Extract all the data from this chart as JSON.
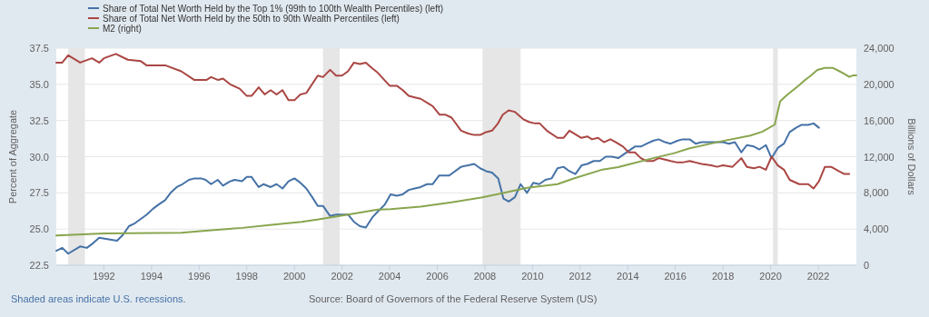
{
  "chart_data": {
    "type": "line",
    "ylabel": "Percent of Aggregate",
    "y2label": "Billions of Dollars",
    "xlim": [
      1990,
      2023.6
    ],
    "xticks": [
      1992,
      1994,
      1996,
      1998,
      2000,
      2002,
      2004,
      2006,
      2008,
      2010,
      2012,
      2014,
      2016,
      2018,
      2020,
      2022
    ],
    "ylim": [
      22.5,
      37.5
    ],
    "yticks": [
      22.5,
      {
        "value": 25,
        "label": "25.0"
      },
      27.5,
      {
        "value": 30,
        "label": "30.0"
      },
      32.5,
      {
        "value": 35,
        "label": "35.0"
      },
      37.5
    ],
    "y2lim": [
      0,
      24000
    ],
    "y2ticks": [
      {
        "value": 0,
        "label": "0"
      },
      {
        "value": 4000,
        "label": "4,000"
      },
      {
        "value": 8000,
        "label": "8,000"
      },
      {
        "value": 12000,
        "label": "12,000"
      },
      {
        "value": 16000,
        "label": "16,000"
      },
      {
        "value": 20000,
        "label": "20,000"
      },
      {
        "value": 24000,
        "label": "24,000"
      }
    ],
    "grid": "y",
    "legend": "top left",
    "marker": "none",
    "line_style": "solid",
    "bands": [
      {
        "axis": "x",
        "from": 1990.5,
        "to": 1991.2,
        "color": "#e6e6e6"
      },
      {
        "axis": "x",
        "from": 2001.2,
        "to": 2001.9,
        "color": "#e6e6e6"
      },
      {
        "axis": "x",
        "from": 2007.9,
        "to": 2009.5,
        "color": "#e6e6e6"
      },
      {
        "axis": "x",
        "from": 2020.1,
        "to": 2020.3,
        "color": "#e6e6e6"
      }
    ],
    "annotations": [
      "Shaded areas indicate U.S. recessions.",
      "Source: Board of Governors of the Federal Reserve System (US)"
    ],
    "series": [
      {
        "name": "Share of Total Net Worth Held by the Top 1% (99th to 100th Wealth Percentiles) (left)",
        "color": "#4572a7",
        "x": [
          1990,
          1990.25,
          1990.5,
          1991,
          1991.28,
          1991.53,
          1991.8,
          1992.55,
          1992.8,
          1993.05,
          1993.3,
          1993.55,
          1993.8,
          1994.06,
          1994.3,
          1994.57,
          1994.8,
          1995.06,
          1995.3,
          1995.57,
          1995.8,
          1996.08,
          1996.27,
          1996.5,
          1996.78,
          1997,
          1997.3,
          1997.5,
          1997.8,
          1998,
          1998.2,
          1998.5,
          1998.7,
          1999,
          1999.25,
          1999.5,
          1999.75,
          2000,
          2000.25,
          2000.5,
          2000.75,
          2000.98,
          2001.2,
          2001.5,
          2001.75,
          2002.25,
          2002.5,
          2002.75,
          2003,
          2003.27,
          2003.5,
          2003.8,
          2004.04,
          2004.3,
          2004.55,
          2004.8,
          2005.05,
          2005.3,
          2005.57,
          2005.8,
          2006.08,
          2006.5,
          2007,
          2007.3,
          2007.55,
          2007.8,
          2008.05,
          2008.3,
          2008.56,
          2008.78,
          2009,
          2009.26,
          2009.5,
          2009.77,
          2010.03,
          2010.28,
          2010.54,
          2010.8,
          2011.05,
          2011.3,
          2011.55,
          2011.8,
          2012.06,
          2012.3,
          2012.57,
          2012.83,
          2013.08,
          2013.34,
          2013.6,
          2014.04,
          2014.3,
          2014.55,
          2014.8,
          2015.06,
          2015.3,
          2015.57,
          2015.8,
          2016.08,
          2016.3,
          2016.6,
          2016.85,
          2017.1,
          2017.5,
          2018,
          2018.25,
          2018.5,
          2018.77,
          2019,
          2019.3,
          2019.53,
          2019.8,
          2020.04,
          2020.3,
          2020.56,
          2020.8,
          2021.07,
          2021.3,
          2021.58,
          2021.8,
          2022.03
        ],
        "values": [
          23.5,
          23.7,
          23.3,
          23.8,
          23.7,
          24,
          24.4,
          24.2,
          24.6,
          25.2,
          25.4,
          25.7,
          26,
          26.4,
          26.7,
          27,
          27.5,
          27.9,
          28.1,
          28.4,
          28.5,
          28.5,
          28.4,
          28.1,
          28.4,
          28,
          28.3,
          28.4,
          28.3,
          28.6,
          28.6,
          27.9,
          28.1,
          27.9,
          28.1,
          27.8,
          28.3,
          28.5,
          28.2,
          27.8,
          27.2,
          26.6,
          26.6,
          25.9,
          26,
          26,
          25.5,
          25.2,
          25.1,
          25.8,
          26.2,
          26.7,
          27.4,
          27.3,
          27.4,
          27.7,
          27.8,
          27.9,
          28.1,
          28.1,
          28.7,
          28.7,
          29.3,
          29.4,
          29.5,
          29.2,
          29,
          28.9,
          28.5,
          27.1,
          26.9,
          27.2,
          28.1,
          27.5,
          28.2,
          28.1,
          28.4,
          28.5,
          29.2,
          29.3,
          29,
          28.8,
          29.4,
          29.5,
          29.7,
          29.7,
          30,
          30,
          29.9,
          30.4,
          30.7,
          30.7,
          30.9,
          31.1,
          31.2,
          31,
          30.9,
          31.1,
          31.2,
          31.2,
          30.9,
          31,
          31,
          31,
          30.9,
          31,
          30.3,
          30.8,
          30.7,
          30.5,
          30.8,
          29.9,
          30.6,
          30.9,
          31.7,
          32,
          32.2,
          32.2,
          32.3,
          32
        ]
      },
      {
        "name": "Share of Total Net Worth Held by the 50th to 90th Wealth Percentiles (left)",
        "color": "#aa4643",
        "x": [
          1990,
          1990.25,
          1990.5,
          1991,
          1991.5,
          1991.8,
          1992,
          1992.5,
          1993,
          1993.55,
          1993.8,
          1994.6,
          1995.25,
          1995.8,
          1996.3,
          1996.5,
          1996.8,
          1997,
          1997.3,
          1997.7,
          1998,
          1998.2,
          1998.5,
          1998.75,
          1999,
          1999.25,
          1999.5,
          1999.75,
          2000,
          2000.25,
          2000.5,
          2000.98,
          2001.2,
          2001.5,
          2001.75,
          2002,
          2002.25,
          2002.5,
          2002.75,
          2003,
          2003.27,
          2003.5,
          2004,
          2004.3,
          2004.55,
          2004.8,
          2005.05,
          2005.3,
          2005.7,
          2005.8,
          2006.1,
          2006.35,
          2006.6,
          2007,
          2007.3,
          2007.55,
          2007.8,
          2008.05,
          2008.3,
          2008.55,
          2008.75,
          2009,
          2009.25,
          2009.6,
          2009.85,
          2010.1,
          2010.3,
          2010.6,
          2011.05,
          2011.3,
          2011.55,
          2012.05,
          2012.3,
          2012.5,
          2012.75,
          2013,
          2013.27,
          2013.5,
          2013.8,
          2014.04,
          2014.3,
          2014.55,
          2014.8,
          2015.06,
          2015.3,
          2015.57,
          2015.8,
          2016.08,
          2016.3,
          2016.6,
          2016.85,
          2017.1,
          2017.5,
          2017.75,
          2018,
          2018.4,
          2018.77,
          2019,
          2019.3,
          2019.53,
          2019.8,
          2020.04,
          2020.3,
          2020.56,
          2020.8,
          2021.2,
          2021.58,
          2021.8,
          2022.03,
          2022.28,
          2022.54,
          2022.86,
          2023.1,
          2023.3
        ],
        "values": [
          36.5,
          36.5,
          37,
          36.5,
          36.8,
          36.5,
          36.8,
          37.1,
          36.7,
          36.6,
          36.3,
          36.3,
          35.9,
          35.3,
          35.3,
          35.5,
          35.3,
          35.4,
          35,
          34.7,
          34.2,
          34.2,
          34.8,
          34.3,
          34.6,
          34.3,
          34.6,
          33.9,
          33.9,
          34.3,
          34.4,
          35.6,
          35.5,
          36,
          35.6,
          35.6,
          35.9,
          36.5,
          36.4,
          36.5,
          36.1,
          35.8,
          34.9,
          34.9,
          34.6,
          34.2,
          34.1,
          34,
          33.6,
          33.5,
          32.9,
          32.9,
          32.7,
          31.8,
          31.6,
          31.5,
          31.5,
          31.7,
          31.8,
          32.3,
          32.9,
          33.2,
          33.1,
          32.6,
          32.4,
          32.3,
          32.3,
          31.8,
          31.3,
          31.3,
          31.8,
          31.3,
          31.4,
          31.2,
          31.3,
          31,
          31.2,
          31,
          30.7,
          30.3,
          30.3,
          29.9,
          29.7,
          29.7,
          29.9,
          29.8,
          29.7,
          29.6,
          29.6,
          29.7,
          29.6,
          29.5,
          29.4,
          29.3,
          29.4,
          29.3,
          29.9,
          29.3,
          29.2,
          29.3,
          29.1,
          30,
          29.4,
          29.1,
          28.4,
          28.1,
          28.1,
          27.8,
          28.3,
          29.3,
          29.3,
          29,
          28.8,
          28.8
        ]
      },
      {
        "name": "M2 (right)",
        "color": "#89a54e",
        "axis": "y2",
        "x": [
          1990,
          1992,
          1995.25,
          1996.5,
          1997.8,
          1999.05,
          2000.3,
          2000.95,
          2002.25,
          2003.5,
          2004.04,
          2005.3,
          2006.6,
          2007.85,
          2008.9,
          2009.77,
          2011.05,
          2011.7,
          2012.94,
          2013.6,
          2014.04,
          2015.3,
          2015.95,
          2016.6,
          2017.87,
          2019.15,
          2019.66,
          2020.17,
          2020.4,
          2020.68,
          2021.2,
          2021.45,
          2021.7,
          2021.96,
          2022.28,
          2022.6,
          2022.86,
          2023.1,
          2023.3,
          2023.45,
          2023.6
        ],
        "values": [
          3290,
          3520,
          3590,
          3860,
          4130,
          4470,
          4800,
          5040,
          5600,
          6150,
          6210,
          6480,
          6950,
          7490,
          8060,
          8560,
          8960,
          9570,
          10580,
          10840,
          11150,
          11990,
          12390,
          12930,
          13670,
          14340,
          14770,
          15540,
          18130,
          18800,
          19910,
          20480,
          20980,
          21590,
          21820,
          21820,
          21490,
          21150,
          20820,
          20980,
          20980
        ]
      }
    ]
  }
}
